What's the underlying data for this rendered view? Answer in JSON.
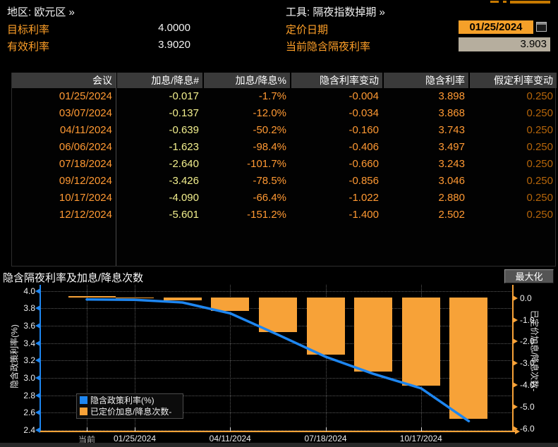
{
  "header": {
    "region": "地区: 欧元区 »",
    "tool": "工具: 隔夜指数掉期 »",
    "target_rate_label": "目标利率",
    "target_rate_value": "4.0000",
    "effective_rate_label": "有效利率",
    "effective_rate_value": "3.9020",
    "pricing_date_label": "定价日期",
    "pricing_date_value": "01/25/2024",
    "current_implied_label": "当前隐含隔夜利率",
    "current_implied_value": "3.903"
  },
  "table": {
    "columns": [
      "会议",
      "加息/降息#",
      "加息/降息%",
      "隐含利率变动",
      "隐含利率",
      "假定利率变动"
    ],
    "rows": [
      [
        "01/25/2024",
        "-0.017",
        "-1.7%",
        "-0.004",
        "3.898",
        "0.250"
      ],
      [
        "03/07/2024",
        "-0.137",
        "-12.0%",
        "-0.034",
        "3.868",
        "0.250"
      ],
      [
        "04/11/2024",
        "-0.639",
        "-50.2%",
        "-0.160",
        "3.743",
        "0.250"
      ],
      [
        "06/06/2024",
        "-1.623",
        "-98.4%",
        "-0.406",
        "3.497",
        "0.250"
      ],
      [
        "07/18/2024",
        "-2.640",
        "-101.7%",
        "-0.660",
        "3.243",
        "0.250"
      ],
      [
        "09/12/2024",
        "-3.426",
        "-78.5%",
        "-0.856",
        "3.046",
        "0.250"
      ],
      [
        "10/17/2024",
        "-4.090",
        "-66.4%",
        "-1.022",
        "2.880",
        "0.250"
      ],
      [
        "12/12/2024",
        "-5.601",
        "-151.2%",
        "-1.400",
        "2.502",
        "0.250"
      ]
    ]
  },
  "chart": {
    "title": "隐含隔夜利率及加息/降息次数",
    "maximize_label": "最大化"
  },
  "chart_data": {
    "type": "combo-line-bar",
    "title": "隐含隔夜利率及加息/降息次数",
    "x_meetings": [
      "当前",
      "01/25/2024",
      "03/07/2024",
      "04/11/2024",
      "06/06/2024",
      "07/18/2024",
      "09/12/2024",
      "10/17/2024",
      "12/12/2024"
    ],
    "series": [
      {
        "name": "隐含政策利率(%)",
        "type": "line",
        "axis": "left",
        "color": "#1e86f0",
        "values": [
          3.903,
          3.898,
          3.868,
          3.743,
          3.497,
          3.243,
          3.046,
          2.88,
          2.502
        ]
      },
      {
        "name": "已定价加息/降息次数-",
        "type": "bar",
        "axis": "right",
        "color": "#f7a238",
        "values": [
          0,
          -0.017,
          -0.137,
          -0.639,
          -1.623,
          -2.64,
          -3.426,
          -4.09,
          -5.601
        ]
      }
    ],
    "left_axis": {
      "label": "隐含政策利率(%)",
      "ticks": [
        4.0,
        3.8,
        3.6,
        3.4,
        3.2,
        3.0,
        2.8,
        2.6,
        2.4
      ]
    },
    "right_axis": {
      "label": "已定价加息/降息次数-",
      "ticks": [
        0.0,
        -1.0,
        -2.0,
        -3.0,
        -4.0,
        -5.0,
        -6.0
      ]
    },
    "x_tick_labels": [
      "当前",
      "01/25/2024",
      "04/11/2024",
      "07/18/2024",
      "10/17/2024"
    ],
    "grid": true,
    "legend_position": "bottom-left",
    "legend": [
      "隐含政策利率(%)",
      "已定价加息/降息次数-"
    ]
  },
  "colors": {
    "accent_amber": "#ffa028",
    "value_orange": "#ff9933",
    "pale_yellow": "#f2ef8d",
    "dim_amber": "#b5650a",
    "line_blue": "#1e86f0",
    "bar_orange": "#f7a238",
    "field_orange_bg": "#f5a029",
    "field_tan_bg": "#b6ae9e"
  }
}
